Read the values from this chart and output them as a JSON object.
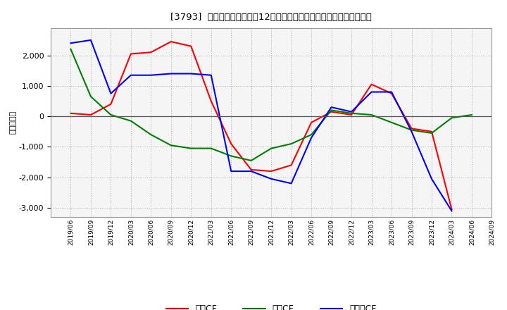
{
  "title": "[3793]  キャッシュフローの12か月移動合計の対前年同期増減額の推移",
  "ylabel": "（百万円）",
  "background_color": "#ffffff",
  "plot_bg_color": "#f5f5f5",
  "grid_color": "#aaaaaa",
  "x_labels": [
    "2019/06",
    "2019/09",
    "2019/12",
    "2020/03",
    "2020/06",
    "2020/09",
    "2020/12",
    "2021/03",
    "2021/06",
    "2021/09",
    "2021/12",
    "2022/03",
    "2022/06",
    "2022/09",
    "2022/12",
    "2023/03",
    "2023/06",
    "2023/09",
    "2023/12",
    "2024/03",
    "2024/06",
    "2024/09"
  ],
  "operating_cf": [
    100,
    50,
    400,
    2050,
    2100,
    2450,
    2300,
    500,
    -900,
    -1750,
    -1800,
    -1600,
    -200,
    150,
    50,
    1050,
    750,
    -400,
    -500,
    -3050,
    null,
    null
  ],
  "investing_cf": [
    2200,
    650,
    50,
    -150,
    -600,
    -950,
    -1050,
    -1050,
    -1300,
    -1450,
    -1050,
    -900,
    -600,
    200,
    100,
    50,
    -200,
    -450,
    -550,
    -50,
    50,
    null
  ],
  "free_cf": [
    2400,
    2500,
    750,
    1350,
    1350,
    1400,
    1400,
    1350,
    -1800,
    -1800,
    -2050,
    -2200,
    -700,
    300,
    150,
    800,
    800,
    -500,
    -2050,
    -3100,
    null,
    null
  ],
  "ylim": [
    -3300,
    2900
  ],
  "yticks": [
    -3000,
    -2000,
    -1000,
    0,
    1000,
    2000
  ],
  "line_colors": {
    "operating": "#ff0000",
    "investing": "#008000",
    "free": "#0000ff"
  },
  "legend_labels": {
    "operating": "営業CF",
    "investing": "投資CF",
    "free": "フリーCF"
  }
}
